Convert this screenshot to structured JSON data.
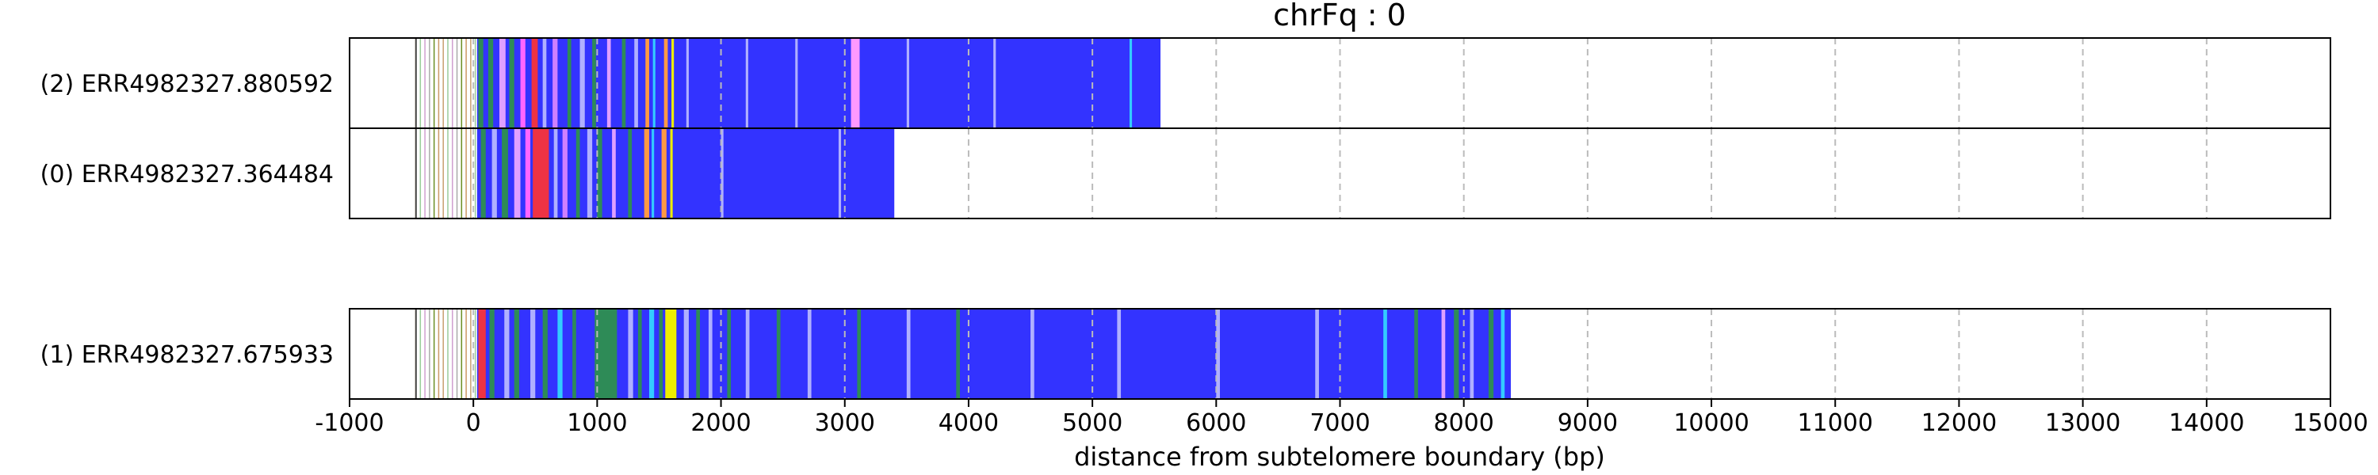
{
  "chart_data": {
    "type": "bar",
    "title": "chrFq : 0",
    "xlabel": "distance from subtelomere boundary (bp)",
    "ylabel": "",
    "xlim": [
      -1000,
      15000
    ],
    "xticks": [
      -1000,
      0,
      1000,
      2000,
      3000,
      4000,
      5000,
      6000,
      7000,
      8000,
      9000,
      10000,
      11000,
      12000,
      13000,
      14000,
      15000
    ],
    "grid": "vertical-dashed",
    "reads": [
      {
        "label": "(2) ERR4982327.880592",
        "start": -470,
        "end": 5550,
        "segments": [
          {
            "start": 30,
            "end": 5550,
            "color": "#3333ff"
          },
          {
            "start": 40,
            "end": 80,
            "color": "#2e8b57"
          },
          {
            "start": 120,
            "end": 160,
            "color": "#2e8b57"
          },
          {
            "start": 210,
            "end": 260,
            "color": "#e0a0ff"
          },
          {
            "start": 290,
            "end": 330,
            "color": "#2e8b57"
          },
          {
            "start": 380,
            "end": 420,
            "color": "#ff66ff"
          },
          {
            "start": 470,
            "end": 520,
            "color": "#ee3344"
          },
          {
            "start": 560,
            "end": 590,
            "color": "#b0b0ff"
          },
          {
            "start": 640,
            "end": 680,
            "color": "#d080ff"
          },
          {
            "start": 760,
            "end": 790,
            "color": "#2e8b57"
          },
          {
            "start": 860,
            "end": 900,
            "color": "#b0b0ff"
          },
          {
            "start": 960,
            "end": 990,
            "color": "#2e8b57"
          },
          {
            "start": 1080,
            "end": 1110,
            "color": "#e0a0ff"
          },
          {
            "start": 1200,
            "end": 1230,
            "color": "#2e8b57"
          },
          {
            "start": 1300,
            "end": 1330,
            "color": "#b0b0ff"
          },
          {
            "start": 1390,
            "end": 1420,
            "color": "#ff9944"
          },
          {
            "start": 1450,
            "end": 1470,
            "color": "#33ccff"
          },
          {
            "start": 1540,
            "end": 1570,
            "color": "#ff9944"
          },
          {
            "start": 1600,
            "end": 1620,
            "color": "#eeee00"
          },
          {
            "start": 1720,
            "end": 1740,
            "color": "#b0b0ff"
          },
          {
            "start": 2200,
            "end": 2220,
            "color": "#b0b0ff"
          },
          {
            "start": 2600,
            "end": 2620,
            "color": "#b0b0ff"
          },
          {
            "start": 3050,
            "end": 3120,
            "color": "#ff99ff"
          },
          {
            "start": 3500,
            "end": 3520,
            "color": "#b0b0ff"
          },
          {
            "start": 4200,
            "end": 4220,
            "color": "#b0b0ff"
          },
          {
            "start": 5300,
            "end": 5320,
            "color": "#33ccff"
          }
        ]
      },
      {
        "label": "(0) ERR4982327.364484",
        "start": -470,
        "end": 3400,
        "segments": [
          {
            "start": 30,
            "end": 3400,
            "color": "#3333ff"
          },
          {
            "start": 60,
            "end": 100,
            "color": "#2e8b57"
          },
          {
            "start": 150,
            "end": 190,
            "color": "#b0b0ff"
          },
          {
            "start": 230,
            "end": 280,
            "color": "#2e8b57"
          },
          {
            "start": 330,
            "end": 380,
            "color": "#e0a0ff"
          },
          {
            "start": 420,
            "end": 460,
            "color": "#ff66ff"
          },
          {
            "start": 480,
            "end": 610,
            "color": "#ee3344"
          },
          {
            "start": 650,
            "end": 680,
            "color": "#b0b0ff"
          },
          {
            "start": 720,
            "end": 760,
            "color": "#d080ff"
          },
          {
            "start": 830,
            "end": 860,
            "color": "#2e8b57"
          },
          {
            "start": 920,
            "end": 960,
            "color": "#b0b0ff"
          },
          {
            "start": 1000,
            "end": 1040,
            "color": "#2e8b57"
          },
          {
            "start": 1120,
            "end": 1150,
            "color": "#e0a0ff"
          },
          {
            "start": 1250,
            "end": 1280,
            "color": "#2e8b57"
          },
          {
            "start": 1380,
            "end": 1420,
            "color": "#ff9944"
          },
          {
            "start": 1440,
            "end": 1460,
            "color": "#33ccff"
          },
          {
            "start": 1520,
            "end": 1560,
            "color": "#ff9944"
          },
          {
            "start": 1590,
            "end": 1610,
            "color": "#eeee00"
          },
          {
            "start": 2000,
            "end": 2020,
            "color": "#b0b0ff"
          },
          {
            "start": 2950,
            "end": 2970,
            "color": "#b0b0ff"
          }
        ]
      },
      {
        "label": "(1) ERR4982327.675933",
        "start": -470,
        "end": 8380,
        "segments": [
          {
            "start": 30,
            "end": 8380,
            "color": "#3333ff"
          },
          {
            "start": 40,
            "end": 100,
            "color": "#ee3344"
          },
          {
            "start": 130,
            "end": 170,
            "color": "#2e8b57"
          },
          {
            "start": 250,
            "end": 290,
            "color": "#b0b0ff"
          },
          {
            "start": 330,
            "end": 370,
            "color": "#2e8b57"
          },
          {
            "start": 460,
            "end": 500,
            "color": "#b0b0ff"
          },
          {
            "start": 560,
            "end": 600,
            "color": "#2e8b57"
          },
          {
            "start": 680,
            "end": 720,
            "color": "#33ccff"
          },
          {
            "start": 800,
            "end": 830,
            "color": "#2e8b57"
          },
          {
            "start": 980,
            "end": 1160,
            "color": "#2e8b57"
          },
          {
            "start": 1250,
            "end": 1290,
            "color": "#b0b0ff"
          },
          {
            "start": 1330,
            "end": 1360,
            "color": "#2e8b57"
          },
          {
            "start": 1420,
            "end": 1460,
            "color": "#33ccff"
          },
          {
            "start": 1500,
            "end": 1530,
            "color": "#2e8b57"
          },
          {
            "start": 1550,
            "end": 1640,
            "color": "#eeee00"
          },
          {
            "start": 1700,
            "end": 1740,
            "color": "#b0b0ff"
          },
          {
            "start": 1800,
            "end": 1830,
            "color": "#2e8b57"
          },
          {
            "start": 1900,
            "end": 1930,
            "color": "#b0b0ff"
          },
          {
            "start": 2050,
            "end": 2080,
            "color": "#2e8b57"
          },
          {
            "start": 2200,
            "end": 2230,
            "color": "#b0b0ff"
          },
          {
            "start": 2450,
            "end": 2480,
            "color": "#2e8b57"
          },
          {
            "start": 2700,
            "end": 2730,
            "color": "#b0b0ff"
          },
          {
            "start": 3100,
            "end": 3130,
            "color": "#2e8b57"
          },
          {
            "start": 3500,
            "end": 3530,
            "color": "#b0b0ff"
          },
          {
            "start": 3900,
            "end": 3930,
            "color": "#2e8b57"
          },
          {
            "start": 4500,
            "end": 4530,
            "color": "#b0b0ff"
          },
          {
            "start": 5200,
            "end": 5230,
            "color": "#b0b0ff"
          },
          {
            "start": 6000,
            "end": 6030,
            "color": "#b0b0ff"
          },
          {
            "start": 6800,
            "end": 6830,
            "color": "#b0b0ff"
          },
          {
            "start": 7350,
            "end": 7380,
            "color": "#33ccff"
          },
          {
            "start": 7600,
            "end": 7630,
            "color": "#2e8b57"
          },
          {
            "start": 7820,
            "end": 7850,
            "color": "#e0a0ff"
          },
          {
            "start": 7920,
            "end": 7960,
            "color": "#2e8b57"
          },
          {
            "start": 8050,
            "end": 8080,
            "color": "#b0b0ff"
          },
          {
            "start": 8200,
            "end": 8240,
            "color": "#2e8b57"
          },
          {
            "start": 8300,
            "end": 8330,
            "color": "#33ccff"
          }
        ]
      }
    ]
  }
}
